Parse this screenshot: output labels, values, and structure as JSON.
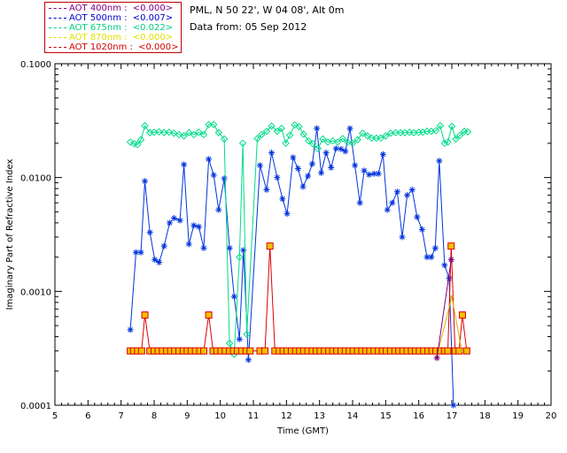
{
  "header": {
    "station": "PML, N 50 22', W 04 08', Alt 0m",
    "date_from": "Data from: 05 Sep 2012"
  },
  "legend": [
    {
      "label": "AOT  400nm : ",
      "value": "<0.000>",
      "color": "#800080"
    },
    {
      "label": "AOT  500nm : ",
      "value": "<0.007>",
      "color": "#0000d0"
    },
    {
      "label": "AOT  675nm : ",
      "value": "<0.022>",
      "color": "#00d080"
    },
    {
      "label": "AOT  870nm : ",
      "value": "<0.000>",
      "color": "#e0e000"
    },
    {
      "label": "AOT 1020nm : ",
      "value": "<0.000>",
      "color": "#d00000"
    }
  ],
  "chart_data": {
    "type": "line",
    "xlabel": "Time (GMT)",
    "ylabel": "Imaginary Part of Refractive Index",
    "xlim": [
      5,
      20
    ],
    "ylim": [
      0.0001,
      0.1
    ],
    "yscale": "log",
    "x_ticks": [
      "5",
      "6",
      "7",
      "8",
      "9",
      "10",
      "11",
      "12",
      "13",
      "14",
      "15",
      "16",
      "17",
      "18",
      "19",
      "20"
    ],
    "y_ticks": [
      {
        "value": 0.0001,
        "label": "0.0001"
      },
      {
        "value": 0.001,
        "label": "0.0010"
      },
      {
        "value": 0.01,
        "label": "0.0100"
      },
      {
        "value": 0.1,
        "label": "0.1000"
      }
    ],
    "series": [
      {
        "name": "AOT 500nm",
        "color": "#0033dd",
        "marker": "asterisk",
        "points": [
          [
            7.28,
            0.00046
          ],
          [
            7.45,
            0.0022
          ],
          [
            7.6,
            0.0022
          ],
          [
            7.72,
            0.0093
          ],
          [
            7.87,
            0.0033
          ],
          [
            8.02,
            0.0019
          ],
          [
            8.15,
            0.0018
          ],
          [
            8.3,
            0.0025
          ],
          [
            8.47,
            0.004
          ],
          [
            8.6,
            0.0044
          ],
          [
            8.78,
            0.0042
          ],
          [
            8.9,
            0.013
          ],
          [
            9.05,
            0.0026
          ],
          [
            9.2,
            0.0038
          ],
          [
            9.35,
            0.0037
          ],
          [
            9.5,
            0.0024
          ],
          [
            9.65,
            0.0145
          ],
          [
            9.8,
            0.0105
          ],
          [
            9.95,
            0.0052
          ],
          [
            10.12,
            0.0098
          ],
          [
            10.28,
            0.0024
          ],
          [
            10.42,
            0.0009
          ],
          [
            10.58,
            0.00038
          ],
          [
            10.7,
            0.0023
          ],
          [
            10.85,
            0.00025
          ],
          [
            11.2,
            0.0128
          ],
          [
            11.4,
            0.0078
          ],
          [
            11.55,
            0.0165
          ],
          [
            11.72,
            0.01
          ],
          [
            11.88,
            0.0065
          ],
          [
            12.02,
            0.0048
          ],
          [
            12.2,
            0.015
          ],
          [
            12.35,
            0.012
          ],
          [
            12.5,
            0.0083
          ],
          [
            12.65,
            0.0103
          ],
          [
            12.78,
            0.0132
          ],
          [
            12.92,
            0.027
          ],
          [
            13.05,
            0.011
          ],
          [
            13.2,
            0.0165
          ],
          [
            13.35,
            0.0122
          ],
          [
            13.5,
            0.018
          ],
          [
            13.65,
            0.0178
          ],
          [
            13.78,
            0.017
          ],
          [
            13.92,
            0.027
          ],
          [
            14.07,
            0.0128
          ],
          [
            14.22,
            0.006
          ],
          [
            14.35,
            0.0115
          ],
          [
            14.5,
            0.0106
          ],
          [
            14.65,
            0.0108
          ],
          [
            14.78,
            0.0108
          ],
          [
            14.92,
            0.016
          ],
          [
            15.05,
            0.0052
          ],
          [
            15.2,
            0.006
          ],
          [
            15.35,
            0.0075
          ],
          [
            15.5,
            0.003
          ],
          [
            15.65,
            0.007
          ],
          [
            15.8,
            0.0078
          ],
          [
            15.95,
            0.0045
          ],
          [
            16.1,
            0.0035
          ],
          [
            16.25,
            0.002
          ],
          [
            16.38,
            0.002
          ],
          [
            16.5,
            0.0024
          ],
          [
            16.62,
            0.014
          ],
          [
            16.78,
            0.0017
          ],
          [
            16.92,
            0.0013
          ],
          [
            17.05,
            8e-05
          ]
        ]
      },
      {
        "name": "AOT 675nm",
        "color": "#00dd88",
        "marker": "diamond",
        "points": [
          [
            7.28,
            0.0205
          ],
          [
            7.4,
            0.0198
          ],
          [
            7.5,
            0.0195
          ],
          [
            7.6,
            0.0215
          ],
          [
            7.72,
            0.0285
          ],
          [
            7.87,
            0.0248
          ],
          [
            8.0,
            0.025
          ],
          [
            8.15,
            0.0252
          ],
          [
            8.3,
            0.0248
          ],
          [
            8.45,
            0.025
          ],
          [
            8.6,
            0.0245
          ],
          [
            8.75,
            0.0238
          ],
          [
            8.9,
            0.0232
          ],
          [
            9.05,
            0.0248
          ],
          [
            9.2,
            0.0238
          ],
          [
            9.35,
            0.025
          ],
          [
            9.5,
            0.0238
          ],
          [
            9.65,
            0.0292
          ],
          [
            9.8,
            0.0292
          ],
          [
            9.95,
            0.0248
          ],
          [
            10.12,
            0.0218
          ],
          [
            10.28,
            0.00035
          ],
          [
            10.42,
            0.00028
          ],
          [
            10.58,
            0.002
          ],
          [
            10.68,
            0.02
          ],
          [
            10.8,
            0.00042
          ],
          [
            11.12,
            0.022
          ],
          [
            11.25,
            0.0238
          ],
          [
            11.4,
            0.0255
          ],
          [
            11.55,
            0.0283
          ],
          [
            11.72,
            0.0255
          ],
          [
            11.85,
            0.027
          ],
          [
            11.98,
            0.02
          ],
          [
            12.1,
            0.0235
          ],
          [
            12.25,
            0.029
          ],
          [
            12.38,
            0.028
          ],
          [
            12.52,
            0.024
          ],
          [
            12.67,
            0.021
          ],
          [
            12.8,
            0.0198
          ],
          [
            12.95,
            0.018
          ],
          [
            13.1,
            0.0218
          ],
          [
            13.25,
            0.0205
          ],
          [
            13.4,
            0.021
          ],
          [
            13.55,
            0.0205
          ],
          [
            13.7,
            0.022
          ],
          [
            13.85,
            0.0205
          ],
          [
            14.0,
            0.02
          ],
          [
            14.15,
            0.0215
          ],
          [
            14.3,
            0.0245
          ],
          [
            14.45,
            0.0232
          ],
          [
            14.58,
            0.0222
          ],
          [
            14.72,
            0.0222
          ],
          [
            14.85,
            0.0222
          ],
          [
            15.0,
            0.0232
          ],
          [
            15.15,
            0.0245
          ],
          [
            15.3,
            0.0248
          ],
          [
            15.45,
            0.0248
          ],
          [
            15.58,
            0.0248
          ],
          [
            15.72,
            0.025
          ],
          [
            15.85,
            0.0248
          ],
          [
            16.0,
            0.025
          ],
          [
            16.12,
            0.025
          ],
          [
            16.25,
            0.0255
          ],
          [
            16.38,
            0.0255
          ],
          [
            16.52,
            0.0258
          ],
          [
            16.65,
            0.0285
          ],
          [
            16.78,
            0.02
          ],
          [
            16.88,
            0.0205
          ],
          [
            17.0,
            0.0282
          ],
          [
            17.12,
            0.0218
          ],
          [
            17.25,
            0.0235
          ],
          [
            17.38,
            0.0255
          ],
          [
            17.48,
            0.0252
          ]
        ]
      },
      {
        "name": "AOT 1020nm",
        "color": "#dd0000",
        "marker": "square",
        "points": [
          [
            7.28,
            0.0003
          ],
          [
            7.38,
            0.0003
          ],
          [
            7.5,
            0.0003
          ],
          [
            7.62,
            0.0003
          ],
          [
            7.72,
            0.00062
          ],
          [
            7.87,
            0.0003
          ],
          [
            8.0,
            0.0003
          ],
          [
            8.12,
            0.0003
          ],
          [
            8.25,
            0.0003
          ],
          [
            8.38,
            0.0003
          ],
          [
            8.5,
            0.0003
          ],
          [
            8.62,
            0.0003
          ],
          [
            8.75,
            0.0003
          ],
          [
            8.88,
            0.0003
          ],
          [
            9.0,
            0.0003
          ],
          [
            9.12,
            0.0003
          ],
          [
            9.25,
            0.0003
          ],
          [
            9.38,
            0.0003
          ],
          [
            9.5,
            0.0003
          ],
          [
            9.65,
            0.00062
          ],
          [
            9.78,
            0.0003
          ],
          [
            9.9,
            0.0003
          ],
          [
            10.02,
            0.0003
          ],
          [
            10.15,
            0.0003
          ],
          [
            10.28,
            0.0003
          ],
          [
            10.4,
            0.0003
          ],
          [
            10.52,
            0.0003
          ],
          [
            10.65,
            0.0003
          ],
          [
            10.78,
            0.0003
          ],
          [
            10.9,
            0.0003
          ],
          [
            11.2,
            0.0003
          ],
          [
            11.35,
            0.0003
          ],
          [
            11.5,
            0.0025
          ],
          [
            11.65,
            0.0003
          ],
          [
            11.78,
            0.0003
          ],
          [
            11.9,
            0.0003
          ],
          [
            12.02,
            0.0003
          ],
          [
            12.15,
            0.0003
          ],
          [
            12.28,
            0.0003
          ],
          [
            12.4,
            0.0003
          ],
          [
            12.52,
            0.0003
          ],
          [
            12.65,
            0.0003
          ],
          [
            12.78,
            0.0003
          ],
          [
            12.9,
            0.0003
          ],
          [
            13.02,
            0.0003
          ],
          [
            13.15,
            0.0003
          ],
          [
            13.28,
            0.0003
          ],
          [
            13.4,
            0.0003
          ],
          [
            13.52,
            0.0003
          ],
          [
            13.65,
            0.0003
          ],
          [
            13.78,
            0.0003
          ],
          [
            13.9,
            0.0003
          ],
          [
            14.02,
            0.0003
          ],
          [
            14.15,
            0.0003
          ],
          [
            14.28,
            0.0003
          ],
          [
            14.4,
            0.0003
          ],
          [
            14.52,
            0.0003
          ],
          [
            14.65,
            0.0003
          ],
          [
            14.78,
            0.0003
          ],
          [
            14.9,
            0.0003
          ],
          [
            15.02,
            0.0003
          ],
          [
            15.15,
            0.0003
          ],
          [
            15.28,
            0.0003
          ],
          [
            15.4,
            0.0003
          ],
          [
            15.52,
            0.0003
          ],
          [
            15.65,
            0.0003
          ],
          [
            15.78,
            0.0003
          ],
          [
            15.9,
            0.0003
          ],
          [
            16.02,
            0.0003
          ],
          [
            16.15,
            0.0003
          ],
          [
            16.28,
            0.0003
          ],
          [
            16.4,
            0.0003
          ],
          [
            16.52,
            0.0003
          ],
          [
            16.65,
            0.0003
          ],
          [
            16.78,
            0.0003
          ],
          [
            16.88,
            0.0003
          ],
          [
            16.98,
            0.0025
          ],
          [
            17.1,
            0.0003
          ],
          [
            17.22,
            0.0003
          ],
          [
            17.32,
            0.00062
          ],
          [
            17.45,
            0.0003
          ]
        ]
      },
      {
        "name": "AOT 870nm",
        "color": "#e0b000",
        "marker": "dot",
        "points": [
          [
            16.55,
            0.00027
          ],
          [
            17.0,
            0.0009
          ],
          [
            17.3,
            0.0003
          ]
        ]
      },
      {
        "name": "AOT 400nm",
        "color": "#800080",
        "marker": "asterisk",
        "points": [
          [
            16.55,
            0.00026
          ],
          [
            16.98,
            0.0019
          ]
        ]
      }
    ]
  }
}
